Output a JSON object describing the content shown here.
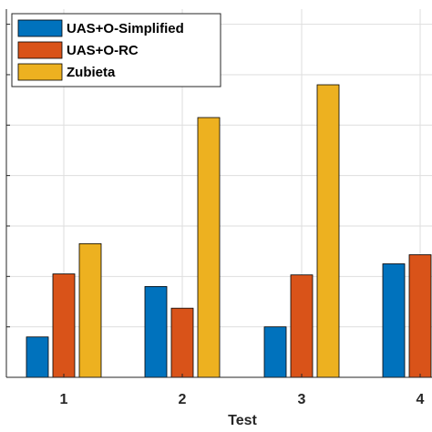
{
  "chart_data": {
    "type": "bar",
    "categories": [
      "1",
      "2",
      "3",
      "4"
    ],
    "series": [
      {
        "name": "UAS+O-Simplified",
        "color": "#0072BD",
        "values": [
          0.8,
          1.8,
          1.0,
          2.25
        ]
      },
      {
        "name": "UAS+O-RC",
        "color": "#D95319",
        "values": [
          2.05,
          1.37,
          2.03,
          2.43
        ]
      },
      {
        "name": "Zubieta",
        "color": "#EDB120",
        "values": [
          2.65,
          5.15,
          5.8,
          null
        ]
      }
    ],
    "xlabel": "Test",
    "ylabel": "",
    "title": "",
    "ylim": [
      0,
      7.3
    ],
    "yticks": [
      0,
      1,
      2,
      3,
      4,
      5,
      6,
      7
    ],
    "grid": true,
    "legend_position": "top-left"
  }
}
